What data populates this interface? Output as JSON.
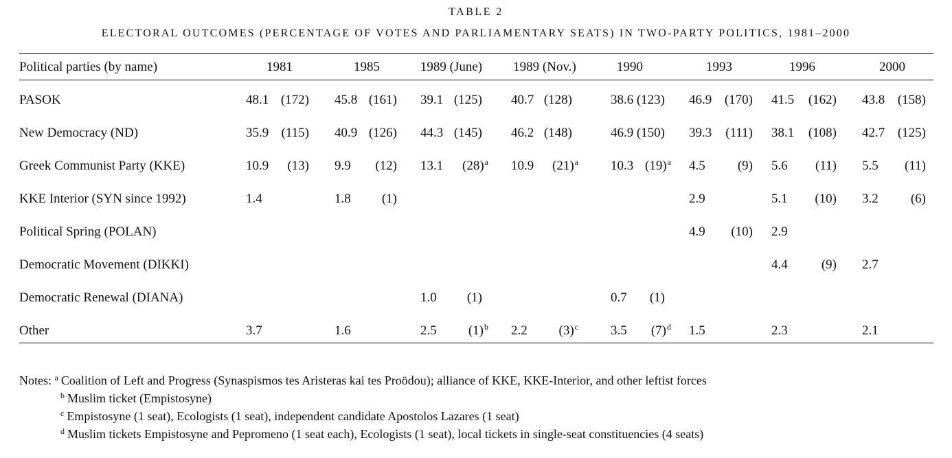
{
  "table_label": "TABLE 2",
  "table_title": "ELECTORAL OUTCOMES (PERCENTAGE OF VOTES AND PARLIAMENTARY SEATS) IN TWO-PARTY POLITICS, 1981–2000",
  "header": {
    "party_col": "Political parties (by name)",
    "years": [
      "1981",
      "1985",
      "1989 (June)",
      "1989 (Nov.)",
      "1990",
      "1993",
      "1996",
      "2000"
    ]
  },
  "rows": [
    {
      "party": "PASOK",
      "cells": [
        {
          "v": "48.1",
          "s": "(172)",
          "fn": ""
        },
        {
          "v": "45.8",
          "s": "(161)",
          "fn": ""
        },
        {
          "v": "39.1",
          "s": "(125)",
          "fn": ""
        },
        {
          "v": "40.7",
          "s": "(128)",
          "fn": ""
        },
        {
          "v": "38.6",
          "s": "(123)",
          "fn": ""
        },
        {
          "v": "46.9",
          "s": "(170)",
          "fn": ""
        },
        {
          "v": "41.5",
          "s": "(162)",
          "fn": ""
        },
        {
          "v": "43.8",
          "s": "(158)",
          "fn": ""
        }
      ]
    },
    {
      "party": "New Democracy (ND)",
      "cells": [
        {
          "v": "35.9",
          "s": "(115)",
          "fn": ""
        },
        {
          "v": "40.9",
          "s": "(126)",
          "fn": ""
        },
        {
          "v": "44.3",
          "s": "(145)",
          "fn": ""
        },
        {
          "v": "46.2",
          "s": "(148)",
          "fn": ""
        },
        {
          "v": "46.9",
          "s": "(150)",
          "fn": ""
        },
        {
          "v": "39.3",
          "s": "(111)",
          "fn": ""
        },
        {
          "v": "38.1",
          "s": "(108)",
          "fn": ""
        },
        {
          "v": "42.7",
          "s": "(125)",
          "fn": ""
        }
      ]
    },
    {
      "party": "Greek Communist Party (KKE)",
      "cells": [
        {
          "v": "10.9",
          "s": "(13)",
          "fn": ""
        },
        {
          "v": "9.9",
          "s": "(12)",
          "fn": ""
        },
        {
          "v": "13.1",
          "s": "(28)",
          "fn": "a"
        },
        {
          "v": "10.9",
          "s": "(21)",
          "fn": "a"
        },
        {
          "v": "10.3",
          "s": "(19)",
          "fn": "a"
        },
        {
          "v": "4.5",
          "s": "(9)",
          "fn": ""
        },
        {
          "v": "5.6",
          "s": "(11)",
          "fn": ""
        },
        {
          "v": "5.5",
          "s": "(11)",
          "fn": ""
        }
      ]
    },
    {
      "party": "KKE  Interior (SYN since 1992)",
      "cells": [
        {
          "v": "1.4",
          "s": "",
          "fn": ""
        },
        {
          "v": "1.8",
          "s": "(1)",
          "fn": ""
        },
        {
          "v": "",
          "s": "",
          "fn": ""
        },
        {
          "v": "",
          "s": "",
          "fn": ""
        },
        {
          "v": "",
          "s": "",
          "fn": ""
        },
        {
          "v": "2.9",
          "s": "",
          "fn": ""
        },
        {
          "v": "5.1",
          "s": "(10)",
          "fn": ""
        },
        {
          "v": "3.2",
          "s": "(6)",
          "fn": ""
        }
      ]
    },
    {
      "party": "Political Spring (POLAN)",
      "cells": [
        {
          "v": "",
          "s": "",
          "fn": ""
        },
        {
          "v": "",
          "s": "",
          "fn": ""
        },
        {
          "v": "",
          "s": "",
          "fn": ""
        },
        {
          "v": "",
          "s": "",
          "fn": ""
        },
        {
          "v": "",
          "s": "",
          "fn": ""
        },
        {
          "v": "4.9",
          "s": "(10)",
          "fn": ""
        },
        {
          "v": "2.9",
          "s": "",
          "fn": ""
        },
        {
          "v": "",
          "s": "",
          "fn": ""
        }
      ]
    },
    {
      "party": "Democratic Movement (DIKKI)",
      "cells": [
        {
          "v": "",
          "s": "",
          "fn": ""
        },
        {
          "v": "",
          "s": "",
          "fn": ""
        },
        {
          "v": "",
          "s": "",
          "fn": ""
        },
        {
          "v": "",
          "s": "",
          "fn": ""
        },
        {
          "v": "",
          "s": "",
          "fn": ""
        },
        {
          "v": "",
          "s": "",
          "fn": ""
        },
        {
          "v": "4.4",
          "s": "(9)",
          "fn": ""
        },
        {
          "v": "2.7",
          "s": "",
          "fn": ""
        }
      ]
    },
    {
      "party": "Democratic Renewal (DIANA)",
      "cells": [
        {
          "v": "",
          "s": "",
          "fn": ""
        },
        {
          "v": "",
          "s": "",
          "fn": ""
        },
        {
          "v": "1.0",
          "s": "(1)",
          "fn": ""
        },
        {
          "v": "",
          "s": "",
          "fn": ""
        },
        {
          "v": "0.7",
          "s": "(1)",
          "fn": ""
        },
        {
          "v": "",
          "s": "",
          "fn": ""
        },
        {
          "v": "",
          "s": "",
          "fn": ""
        },
        {
          "v": "",
          "s": "",
          "fn": ""
        }
      ]
    },
    {
      "party": "Other",
      "cells": [
        {
          "v": "3.7",
          "s": "",
          "fn": ""
        },
        {
          "v": "1.6",
          "s": "",
          "fn": ""
        },
        {
          "v": "2.5",
          "s": "(1)",
          "fn": "b"
        },
        {
          "v": "2.2",
          "s": "(3)",
          "fn": "c"
        },
        {
          "v": "3.5",
          "s": "(7)",
          "fn": "d"
        },
        {
          "v": "1.5",
          "s": "",
          "fn": ""
        },
        {
          "v": "2.3",
          "s": "",
          "fn": ""
        },
        {
          "v": "2.1",
          "s": "",
          "fn": ""
        }
      ]
    }
  ],
  "notes": {
    "prefix": "Notes:",
    "items": [
      {
        "mark": "a",
        "text": "Coalition of Left and Progress (Synaspismos tes Aristeras kai tes Proödou); alliance of KKE, KKE-Interior, and other leftist forces"
      },
      {
        "mark": "b",
        "text": "Muslim ticket (Empistosyne)"
      },
      {
        "mark": "c",
        "text": "Empistosyne (1 seat), Ecologists (1 seat), independent candidate Apostolos Lazares (1 seat)"
      },
      {
        "mark": "d",
        "text": "Muslim tickets Empistosyne and Pepromeno (1 seat each), Ecologists (1 seat), local tickets in single-seat constituencies (4 seats)"
      }
    ]
  }
}
